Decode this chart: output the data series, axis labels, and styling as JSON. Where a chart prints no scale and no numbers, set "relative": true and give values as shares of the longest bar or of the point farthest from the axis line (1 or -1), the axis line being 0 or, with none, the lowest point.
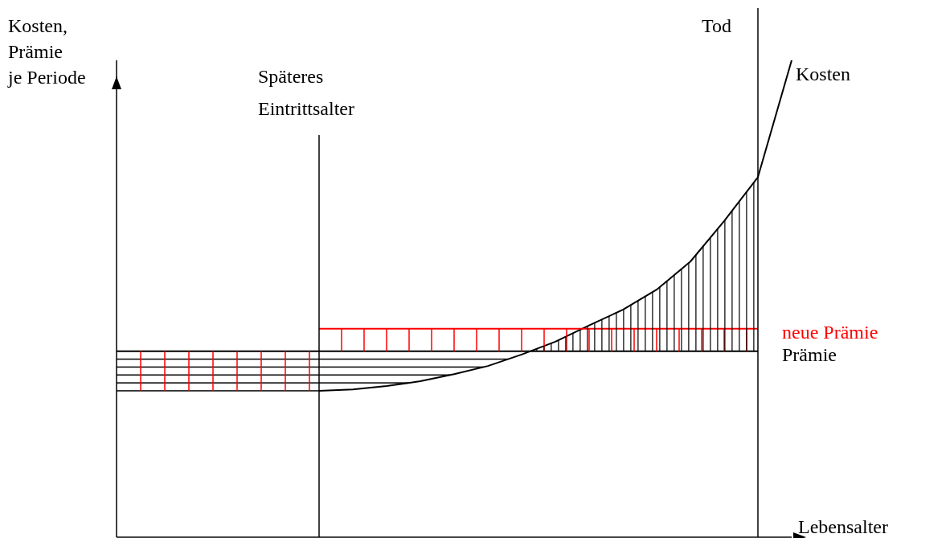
{
  "chart_data": {
    "type": "line",
    "relative": true,
    "xlabel": "Lebensalter",
    "ylabel": "Kosten,\nPrämie\nje Periode",
    "legend": "right",
    "categories": [
      null,
      null,
      null,
      null,
      null,
      null,
      null,
      null,
      null,
      null,
      null,
      null,
      null,
      null,
      null,
      null,
      null,
      null,
      null,
      null,
      null
    ],
    "series": [
      {
        "name": "Kosten",
        "color": "#000000",
        "values": [
          null,
          null,
          null,
          null,
          null,
          null,
          0.307,
          0.31,
          0.317,
          0.327,
          0.342,
          0.359,
          0.383,
          0.41,
          0.444,
          0.477,
          0.519,
          0.578,
          0.663,
          0.755,
          1
        ]
      },
      {
        "name": "Prämie",
        "color": "#000000",
        "values": [
          0.39,
          0.39,
          0.39,
          0.39,
          0.39,
          0.39,
          0.39,
          0.39,
          0.39,
          0.39,
          0.39,
          0.39,
          0.39,
          0.39,
          0.39,
          0.39,
          0.39,
          0.39,
          0.39,
          0.39,
          null
        ]
      },
      {
        "name": "neue Prämie",
        "color": "#ff0000",
        "values": [
          null,
          null,
          null,
          null,
          null,
          null,
          0.437,
          0.437,
          0.437,
          0.437,
          0.437,
          0.437,
          0.437,
          0.437,
          0.437,
          0.437,
          0.437,
          0.437,
          0.437,
          0.437,
          null
        ]
      }
    ],
    "annotations": [
      "Späteres\nEintrittsalter",
      "Tod"
    ]
  }
}
